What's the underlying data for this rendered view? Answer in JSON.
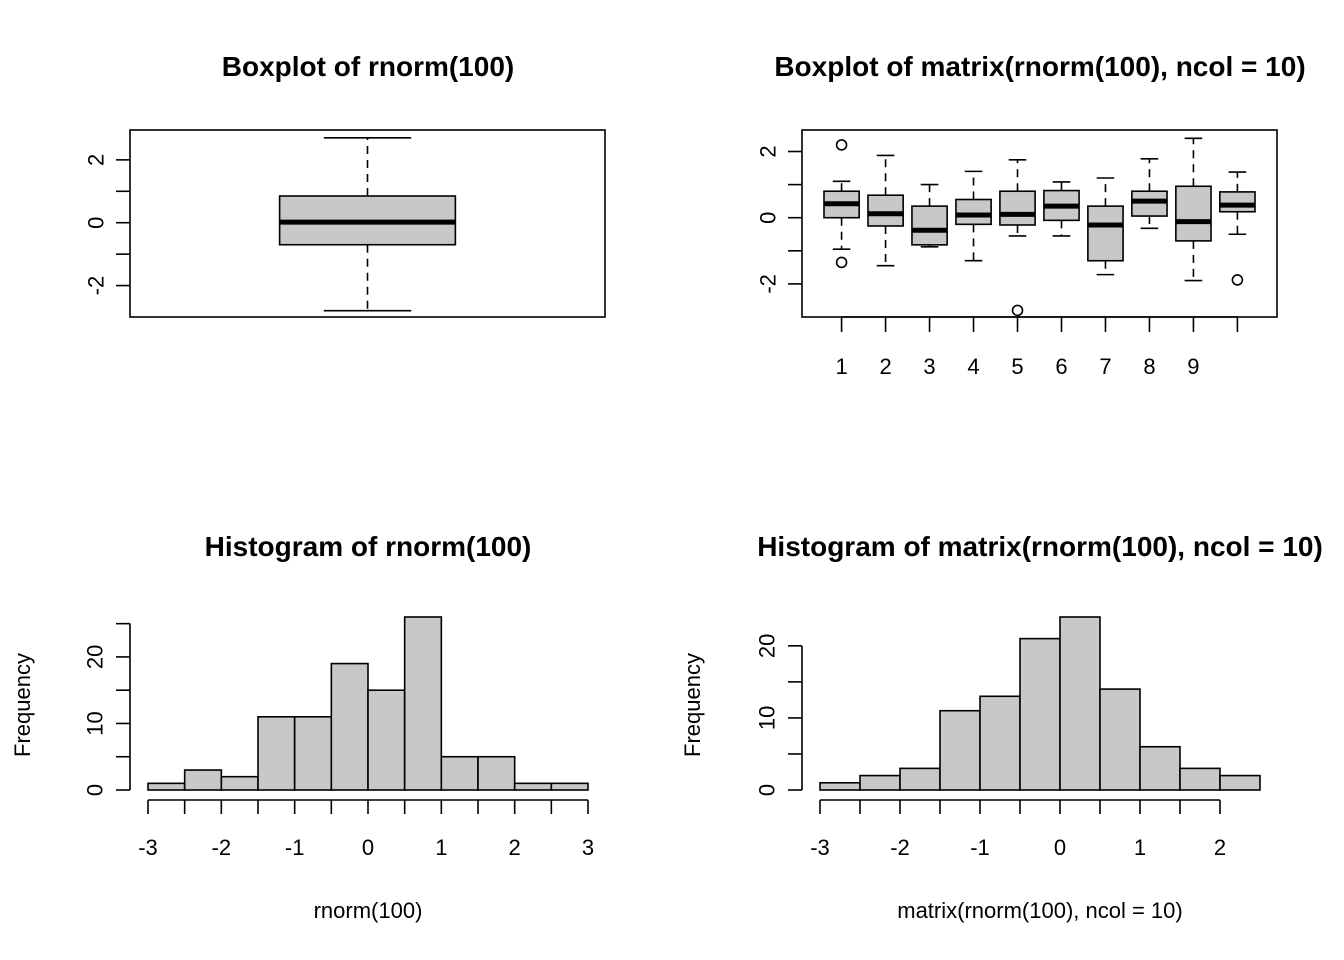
{
  "fill_color": "#c8c8c8",
  "chart_data": [
    {
      "type": "boxplot",
      "title": "Boxplot of rnorm(100)",
      "xlabel": "",
      "ylabel": "",
      "ylim": [
        -3.0,
        2.95
      ],
      "y_ticks": [
        -2,
        0,
        2
      ],
      "y_tick_labels": [
        "-2",
        "0",
        "2"
      ],
      "boxes": [
        {
          "whisker_low": -2.8,
          "q1": -0.7,
          "median": 0.02,
          "q3": 0.85,
          "whisker_high": 2.7,
          "outliers": []
        }
      ]
    },
    {
      "type": "boxplot",
      "title": "Boxplot of matrix(rnorm(100), ncol = 10)",
      "xlabel": "",
      "ylabel": "",
      "ylim": [
        -3.0,
        2.65
      ],
      "y_ticks": [
        -2,
        0,
        2
      ],
      "y_tick_labels": [
        "-2",
        "0",
        "2"
      ],
      "x_tick_labels": [
        "1",
        "2",
        "3",
        "4",
        "5",
        "6",
        "7",
        "8",
        "9",
        ""
      ],
      "boxes": [
        {
          "whisker_low": -0.95,
          "q1": 0.0,
          "median": 0.42,
          "q3": 0.8,
          "whisker_high": 1.1,
          "outliers": [
            2.2,
            -1.35
          ]
        },
        {
          "whisker_low": -1.45,
          "q1": -0.25,
          "median": 0.12,
          "q3": 0.68,
          "whisker_high": 1.88,
          "outliers": []
        },
        {
          "whisker_low": -0.88,
          "q1": -0.82,
          "median": -0.38,
          "q3": 0.35,
          "whisker_high": 1.0,
          "outliers": []
        },
        {
          "whisker_low": -1.3,
          "q1": -0.2,
          "median": 0.08,
          "q3": 0.55,
          "whisker_high": 1.4,
          "outliers": []
        },
        {
          "whisker_low": -0.55,
          "q1": -0.22,
          "median": 0.1,
          "q3": 0.8,
          "whisker_high": 1.75,
          "outliers": [
            -2.8
          ]
        },
        {
          "whisker_low": -0.55,
          "q1": -0.08,
          "median": 0.35,
          "q3": 0.82,
          "whisker_high": 1.08,
          "outliers": []
        },
        {
          "whisker_low": -1.72,
          "q1": -1.3,
          "median": -0.22,
          "q3": 0.35,
          "whisker_high": 1.2,
          "outliers": []
        },
        {
          "whisker_low": -0.32,
          "q1": 0.05,
          "median": 0.5,
          "q3": 0.8,
          "whisker_high": 1.78,
          "outliers": []
        },
        {
          "whisker_low": -1.9,
          "q1": -0.7,
          "median": -0.12,
          "q3": 0.95,
          "whisker_high": 2.4,
          "outliers": []
        },
        {
          "whisker_low": -0.5,
          "q1": 0.18,
          "median": 0.38,
          "q3": 0.78,
          "whisker_high": 1.38,
          "outliers": [
            -1.88
          ]
        }
      ]
    },
    {
      "type": "histogram",
      "title": "Histogram of rnorm(100)",
      "xlabel": "rnorm(100)",
      "ylabel": "Frequency",
      "xlim": [
        -3.1,
        3.0
      ],
      "ylim": [
        0,
        26
      ],
      "x_ticks": [
        -3,
        -2,
        -1,
        0,
        1,
        2,
        3
      ],
      "x_tick_labels": [
        "-3",
        "-2",
        "-1",
        "0",
        "1",
        "2",
        "3"
      ],
      "y_ticks": [
        0,
        10,
        20
      ],
      "y_tick_labels": [
        "0",
        "10",
        "20"
      ],
      "y_minor_step": 5,
      "y_axis_top": 25,
      "bins": [
        -3.0,
        -2.5,
        -2.0,
        -1.5,
        -1.0,
        -0.5,
        0.0,
        0.5,
        1.0,
        1.5,
        2.0,
        2.5,
        3.0
      ],
      "counts": [
        1,
        3,
        2,
        11,
        11,
        19,
        15,
        26,
        5,
        5,
        1,
        1
      ]
    },
    {
      "type": "histogram",
      "title": "Histogram of matrix(rnorm(100), ncol = 10)",
      "xlabel": "matrix(rnorm(100), ncol = 10)",
      "ylabel": "Frequency",
      "xlim": [
        -3.1,
        2.6
      ],
      "ylim": [
        0,
        24
      ],
      "x_ticks": [
        -3,
        -2,
        -1,
        0,
        1,
        2
      ],
      "x_tick_labels": [
        "-3",
        "-2",
        "-1",
        "0",
        "1",
        "2"
      ],
      "y_ticks": [
        0,
        10,
        20
      ],
      "y_tick_labels": [
        "0",
        "10",
        "20"
      ],
      "y_minor_step": 5,
      "y_axis_top": 20,
      "bins": [
        -3.0,
        -2.5,
        -2.0,
        -1.5,
        -1.0,
        -0.5,
        0.0,
        0.5,
        1.0,
        1.5,
        2.0,
        2.5
      ],
      "counts": [
        1,
        2,
        3,
        11,
        13,
        21,
        24,
        14,
        6,
        3,
        2
      ]
    }
  ]
}
